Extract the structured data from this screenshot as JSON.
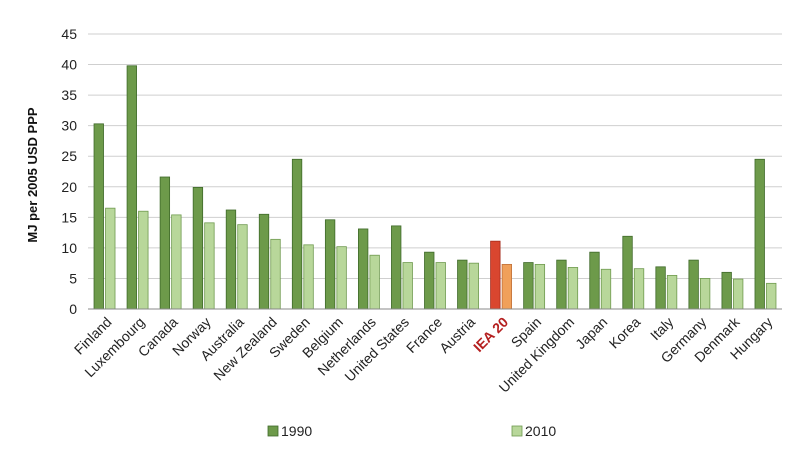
{
  "chart_data": {
    "type": "bar",
    "title": "",
    "xlabel": "",
    "ylabel": "MJ per 2005 USD PPP",
    "ylim": [
      0,
      45
    ],
    "yticks": [
      0,
      5,
      10,
      15,
      20,
      25,
      30,
      35,
      40,
      45
    ],
    "grid": true,
    "legend_position": "bottom",
    "categories": [
      "Finland",
      "Luxembourg",
      "Canada",
      "Norway",
      "Australia",
      "New Zealand",
      "Sweden",
      "Belgium",
      "Netherlands",
      "United States",
      "France",
      "Austria",
      "IEA 20",
      "Spain",
      "United Kingdom",
      "Japan",
      "Korea",
      "Italy",
      "Germany",
      "Denmark",
      "Hungary"
    ],
    "highlight_category": "IEA 20",
    "series": [
      {
        "name": "1990",
        "values": [
          30.3,
          39.8,
          21.6,
          19.9,
          16.2,
          15.5,
          24.5,
          14.6,
          13.1,
          13.6,
          9.3,
          8.0,
          11.1,
          7.6,
          8.0,
          9.3,
          11.9,
          6.9,
          8.0,
          6.0,
          24.5
        ]
      },
      {
        "name": "2010",
        "values": [
          16.5,
          16.0,
          15.4,
          14.1,
          13.8,
          11.4,
          10.5,
          10.2,
          8.8,
          7.6,
          7.6,
          7.5,
          7.3,
          7.3,
          6.8,
          6.5,
          6.6,
          5.5,
          5.0,
          4.9,
          4.2
        ]
      }
    ],
    "colors": {
      "series_1990": "#6d9a4a",
      "series_2010": "#b8d79a",
      "highlight_1990": "#d9462f",
      "highlight_2010": "#f0a05a",
      "highlight_label": "#b52020"
    }
  }
}
